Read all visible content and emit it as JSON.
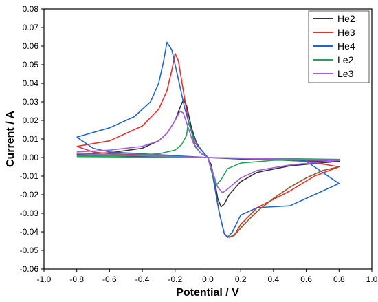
{
  "chart_data": {
    "type": "line",
    "title": "",
    "xlabel": "Potential / V",
    "ylabel": "Current / A",
    "xlim": [
      -1.0,
      1.0
    ],
    "ylim": [
      -0.06,
      0.08
    ],
    "grid": false,
    "legend_placement": "top-right",
    "x_ticks": [
      -1.0,
      -0.8,
      -0.6,
      -0.4,
      -0.2,
      0.0,
      0.2,
      0.4,
      0.6,
      0.8,
      1.0
    ],
    "x_tick_labels": [
      "-1.0",
      "-0.8",
      "-0.6",
      "-0.4",
      "-0.2",
      "0.0",
      "0.2",
      "0.4",
      "0.6",
      "0.8",
      "1.0"
    ],
    "y_ticks": [
      -0.06,
      -0.05,
      -0.04,
      -0.03,
      -0.02,
      -0.01,
      0.0,
      0.01,
      0.02,
      0.03,
      0.04,
      0.05,
      0.06,
      0.07,
      0.08
    ],
    "y_tick_labels": [
      "-0.06",
      "-0.05",
      "-0.04",
      "-0.03",
      "-0.02",
      "-0.01",
      "0.00",
      "0.01",
      "0.02",
      "0.03",
      "0.04",
      "0.05",
      "0.06",
      "0.07",
      "0.08"
    ],
    "series": [
      {
        "name": "He2",
        "color": "#333333",
        "points": [
          [
            -0.8,
            0.002
          ],
          [
            -0.6,
            0.0025
          ],
          [
            -0.4,
            0.005
          ],
          [
            -0.3,
            0.009
          ],
          [
            -0.25,
            0.013
          ],
          [
            -0.2,
            0.02
          ],
          [
            -0.17,
            0.027
          ],
          [
            -0.15,
            0.031
          ],
          [
            -0.13,
            0.028
          ],
          [
            -0.1,
            0.016
          ],
          [
            -0.07,
            0.008
          ],
          [
            -0.04,
            0.004
          ],
          [
            -0.02,
            0.002
          ],
          [
            0.0,
            0.0
          ],
          [
            0.02,
            -0.004
          ],
          [
            0.04,
            -0.012
          ],
          [
            0.06,
            -0.022
          ],
          [
            0.08,
            -0.0265
          ],
          [
            0.1,
            -0.025
          ],
          [
            0.13,
            -0.02
          ],
          [
            0.2,
            -0.013
          ],
          [
            0.3,
            -0.008
          ],
          [
            0.5,
            -0.0045
          ],
          [
            0.8,
            -0.002
          ],
          [
            0.6,
            -0.0018
          ],
          [
            0.4,
            -0.0012
          ],
          [
            0.2,
            -0.0008
          ],
          [
            0.0,
            0.0
          ],
          [
            -0.4,
            0.0006
          ],
          [
            -0.8,
            0.0015
          ]
        ]
      },
      {
        "name": "He3",
        "color": "#e8302f",
        "points": [
          [
            -0.8,
            0.006
          ],
          [
            -0.6,
            0.009
          ],
          [
            -0.4,
            0.017
          ],
          [
            -0.3,
            0.026
          ],
          [
            -0.25,
            0.036
          ],
          [
            -0.22,
            0.047
          ],
          [
            -0.2,
            0.056
          ],
          [
            -0.18,
            0.052
          ],
          [
            -0.15,
            0.036
          ],
          [
            -0.12,
            0.02
          ],
          [
            -0.08,
            0.008
          ],
          [
            -0.04,
            0.004
          ],
          [
            0.0,
            0.0
          ],
          [
            0.03,
            -0.01
          ],
          [
            0.07,
            -0.03
          ],
          [
            0.1,
            -0.041
          ],
          [
            0.13,
            -0.043
          ],
          [
            0.16,
            -0.042
          ],
          [
            0.2,
            -0.036
          ],
          [
            0.3,
            -0.027
          ],
          [
            0.5,
            -0.018
          ],
          [
            0.65,
            -0.01
          ],
          [
            0.8,
            -0.005
          ],
          [
            0.6,
            -0.002
          ],
          [
            0.4,
            -0.0012
          ],
          [
            0.0,
            0.0
          ],
          [
            -0.4,
            0.0015
          ],
          [
            -0.6,
            0.002
          ],
          [
            -0.7,
            0.003
          ],
          [
            -0.8,
            0.006
          ]
        ]
      },
      {
        "name": "He4",
        "color": "#2167c9",
        "points": [
          [
            -0.8,
            0.011
          ],
          [
            -0.6,
            0.016
          ],
          [
            -0.45,
            0.022
          ],
          [
            -0.35,
            0.03
          ],
          [
            -0.3,
            0.04
          ],
          [
            -0.27,
            0.052
          ],
          [
            -0.25,
            0.062
          ],
          [
            -0.22,
            0.058
          ],
          [
            -0.18,
            0.042
          ],
          [
            -0.14,
            0.026
          ],
          [
            -0.1,
            0.014
          ],
          [
            -0.06,
            0.006
          ],
          [
            -0.03,
            0.003
          ],
          [
            0.0,
            0.0
          ],
          [
            0.03,
            -0.01
          ],
          [
            0.07,
            -0.03
          ],
          [
            0.1,
            -0.041
          ],
          [
            0.12,
            -0.043
          ],
          [
            0.15,
            -0.04
          ],
          [
            0.2,
            -0.031
          ],
          [
            0.3,
            -0.027
          ],
          [
            0.5,
            -0.026
          ],
          [
            0.65,
            -0.02
          ],
          [
            0.8,
            -0.014
          ],
          [
            0.6,
            -0.002
          ],
          [
            0.4,
            -0.001
          ],
          [
            0.0,
            0.0
          ],
          [
            -0.4,
            0.002
          ],
          [
            -0.6,
            0.003
          ],
          [
            -0.7,
            0.005
          ],
          [
            -0.8,
            0.011
          ]
        ]
      },
      {
        "name": "Le2",
        "color": "#25a35b",
        "points": [
          [
            -0.8,
            0.001
          ],
          [
            -0.5,
            0.001
          ],
          [
            -0.3,
            0.002
          ],
          [
            -0.2,
            0.004
          ],
          [
            -0.16,
            0.007
          ],
          [
            -0.13,
            0.012
          ],
          [
            -0.12,
            0.019
          ],
          [
            -0.1,
            0.014
          ],
          [
            -0.08,
            0.006
          ],
          [
            -0.04,
            0.002
          ],
          [
            0.0,
            0.0
          ],
          [
            0.02,
            -0.006
          ],
          [
            0.05,
            -0.015
          ],
          [
            0.08,
            -0.012
          ],
          [
            0.12,
            -0.006
          ],
          [
            0.2,
            -0.003
          ],
          [
            0.4,
            -0.0015
          ],
          [
            0.8,
            -0.001
          ],
          [
            0.4,
            -0.0005
          ],
          [
            0.0,
            0.0
          ],
          [
            -0.8,
            0.0005
          ]
        ]
      },
      {
        "name": "Le3",
        "color": "#a35fe0",
        "points": [
          [
            -0.8,
            0.003
          ],
          [
            -0.6,
            0.004
          ],
          [
            -0.4,
            0.006
          ],
          [
            -0.3,
            0.009
          ],
          [
            -0.25,
            0.013
          ],
          [
            -0.2,
            0.02
          ],
          [
            -0.17,
            0.025
          ],
          [
            -0.15,
            0.024
          ],
          [
            -0.12,
            0.016
          ],
          [
            -0.09,
            0.008
          ],
          [
            -0.05,
            0.003
          ],
          [
            0.0,
            0.0
          ],
          [
            0.03,
            -0.008
          ],
          [
            0.06,
            -0.016
          ],
          [
            0.09,
            -0.019
          ],
          [
            0.12,
            -0.017
          ],
          [
            0.2,
            -0.011
          ],
          [
            0.3,
            -0.007
          ],
          [
            0.5,
            -0.004
          ],
          [
            0.8,
            -0.0015
          ],
          [
            0.6,
            -0.001
          ],
          [
            0.3,
            -0.0006
          ],
          [
            0.0,
            0.0
          ],
          [
            -0.4,
            0.001
          ],
          [
            -0.8,
            0.002
          ]
        ]
      },
      {
        "name": "",
        "color": "#8b5a2b",
        "points": [
          [
            0.13,
            -0.043
          ],
          [
            0.17,
            -0.041
          ],
          [
            0.22,
            -0.036
          ],
          [
            0.3,
            -0.029
          ],
          [
            0.4,
            -0.022
          ],
          [
            0.5,
            -0.016
          ],
          [
            0.6,
            -0.011
          ],
          [
            0.7,
            -0.007
          ],
          [
            0.8,
            -0.005
          ]
        ]
      }
    ]
  }
}
